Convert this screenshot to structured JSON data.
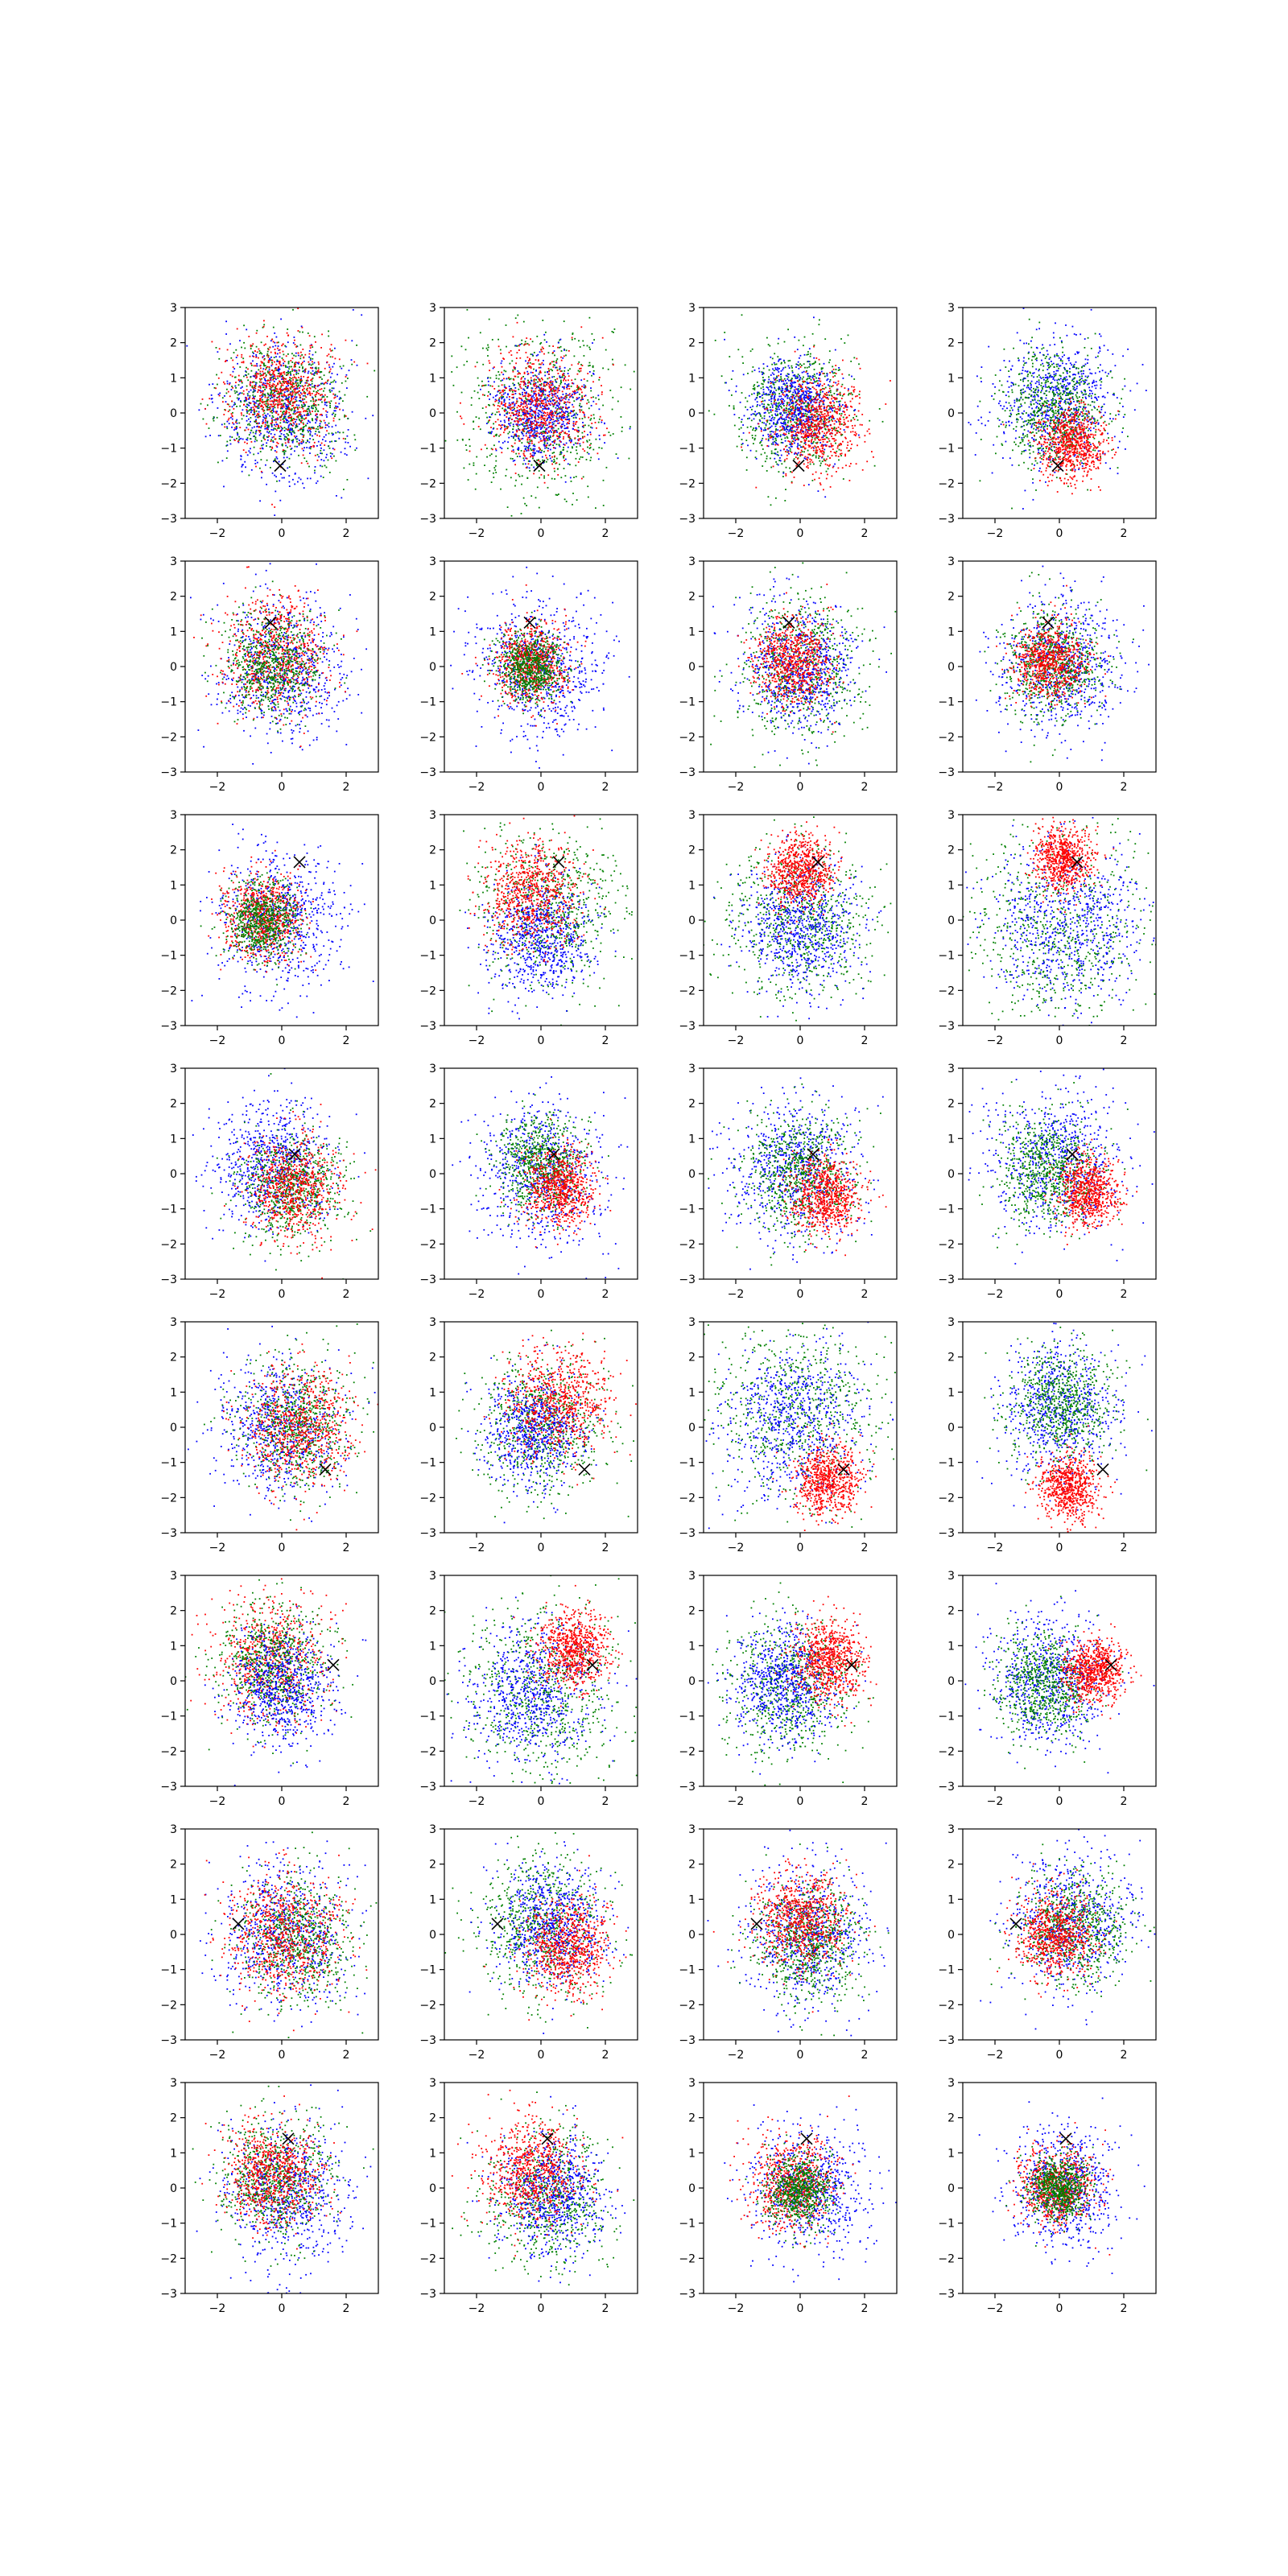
{
  "figure": {
    "rows": 8,
    "cols": 4
  },
  "colors": {
    "red": "#ff0000",
    "green": "#008000",
    "blue": "#0000ff",
    "marker": "#000000",
    "axes": "#000000"
  },
  "chart_data": {
    "type": "scatter",
    "title": "",
    "xlabel": "",
    "ylabel": "",
    "xlim": [
      -3,
      3
    ],
    "ylim": [
      -3,
      3
    ],
    "x_ticks": [
      -2,
      0,
      2
    ],
    "y_ticks": [
      -3,
      -2,
      -1,
      0,
      1,
      2,
      3
    ],
    "x_tick_labels": [
      "−2",
      "0",
      "2"
    ],
    "y_tick_labels": [
      "−3",
      "−2",
      "−1",
      "0",
      "1",
      "2",
      "3"
    ],
    "grid": false,
    "legend": "none",
    "marker_symbol": "x",
    "series_colors": [
      "blue",
      "green",
      "red"
    ],
    "note_series": "Each panel shows three colored point clouds; each cloud is summarized by its center [x, y] and spread sd.",
    "panels": [
      {
        "marker": [
          -0.05,
          -1.5
        ],
        "series": [
          {
            "color": "blue",
            "center": [
              0.0,
              0.0
            ],
            "sd": 1.0
          },
          {
            "color": "green",
            "center": [
              0.1,
              0.4
            ],
            "sd": 0.9
          },
          {
            "color": "red",
            "center": [
              0.0,
              0.6
            ],
            "sd": 0.8
          }
        ]
      },
      {
        "marker": [
          -0.05,
          -1.5
        ],
        "series": [
          {
            "color": "green",
            "center": [
              0.0,
              0.0
            ],
            "sd": 1.25
          },
          {
            "color": "blue",
            "center": [
              0.0,
              0.0
            ],
            "sd": 0.7
          },
          {
            "color": "red",
            "center": [
              0.0,
              0.2
            ],
            "sd": 0.8
          }
        ]
      },
      {
        "marker": [
          -0.05,
          -1.5
        ],
        "series": [
          {
            "color": "green",
            "center": [
              -0.2,
              0.1
            ],
            "sd": 0.9
          },
          {
            "color": "blue",
            "center": [
              -0.2,
              0.2
            ],
            "sd": 0.7
          },
          {
            "color": "red",
            "center": [
              0.5,
              -0.3
            ],
            "sd": 0.7
          }
        ]
      },
      {
        "marker": [
          -0.05,
          -1.5
        ],
        "series": [
          {
            "color": "blue",
            "center": [
              -0.1,
              0.3
            ],
            "sd": 0.9
          },
          {
            "color": "green",
            "center": [
              -0.2,
              0.1
            ],
            "sd": 0.8
          },
          {
            "color": "red",
            "center": [
              0.4,
              -0.9
            ],
            "sd": 0.5
          }
        ]
      },
      {
        "marker": [
          -0.35,
          1.25
        ],
        "series": [
          {
            "color": "blue",
            "center": [
              0.0,
              0.0
            ],
            "sd": 1.0
          },
          {
            "color": "red",
            "center": [
              -0.2,
              0.3
            ],
            "sd": 0.8
          },
          {
            "color": "green",
            "center": [
              -0.3,
              0.1
            ],
            "sd": 0.75
          }
        ]
      },
      {
        "marker": [
          -0.35,
          1.25
        ],
        "series": [
          {
            "color": "blue",
            "center": [
              0.0,
              0.0
            ],
            "sd": 1.0
          },
          {
            "color": "red",
            "center": [
              -0.3,
              0.1
            ],
            "sd": 0.55
          },
          {
            "color": "green",
            "center": [
              -0.3,
              0.0
            ],
            "sd": 0.5
          }
        ]
      },
      {
        "marker": [
          -0.35,
          1.25
        ],
        "series": [
          {
            "color": "green",
            "center": [
              0.0,
              0.0
            ],
            "sd": 1.0
          },
          {
            "color": "blue",
            "center": [
              0.0,
              0.0
            ],
            "sd": 0.9
          },
          {
            "color": "red",
            "center": [
              -0.2,
              0.1
            ],
            "sd": 0.6
          }
        ]
      },
      {
        "marker": [
          -0.35,
          1.25
        ],
        "series": [
          {
            "color": "blue",
            "center": [
              0.1,
              0.0
            ],
            "sd": 0.95
          },
          {
            "color": "green",
            "center": [
              -0.2,
              0.1
            ],
            "sd": 0.8
          },
          {
            "color": "red",
            "center": [
              -0.3,
              0.2
            ],
            "sd": 0.55
          }
        ]
      },
      {
        "marker": [
          0.55,
          1.65
        ],
        "series": [
          {
            "color": "blue",
            "center": [
              0.0,
              0.0
            ],
            "sd": 1.0
          },
          {
            "color": "red",
            "center": [
              -0.6,
              0.1
            ],
            "sd": 0.6
          },
          {
            "color": "green",
            "center": [
              -0.6,
              0.0
            ],
            "sd": 0.55
          }
        ]
      },
      {
        "marker": [
          0.55,
          1.65
        ],
        "series": [
          {
            "color": "green",
            "center": [
              0.3,
              0.3
            ],
            "sd": 1.1
          },
          {
            "color": "blue",
            "center": [
              0.0,
              -0.5
            ],
            "sd": 0.8
          },
          {
            "color": "red",
            "center": [
              -0.3,
              0.8
            ],
            "sd": 0.75
          }
        ]
      },
      {
        "marker": [
          0.55,
          1.65
        ],
        "series": [
          {
            "color": "green",
            "center": [
              0.0,
              0.0
            ],
            "sd": 1.1
          },
          {
            "color": "blue",
            "center": [
              0.0,
              -0.2
            ],
            "sd": 0.9
          },
          {
            "color": "red",
            "center": [
              0.0,
              1.4
            ],
            "sd": 0.5
          }
        ]
      },
      {
        "marker": [
          0.55,
          1.65
        ],
        "series": [
          {
            "color": "green",
            "center": [
              0.0,
              -0.4
            ],
            "sd": 1.5
          },
          {
            "color": "blue",
            "center": [
              0.2,
              -0.2
            ],
            "sd": 1.2
          },
          {
            "color": "red",
            "center": [
              0.1,
              1.75
            ],
            "sd": 0.45
          }
        ]
      },
      {
        "marker": [
          0.4,
          0.55
        ],
        "series": [
          {
            "color": "blue",
            "center": [
              -0.3,
              0.3
            ],
            "sd": 0.9
          },
          {
            "color": "green",
            "center": [
              0.3,
              -0.4
            ],
            "sd": 0.8
          },
          {
            "color": "red",
            "center": [
              0.4,
              -0.4
            ],
            "sd": 0.7
          }
        ]
      },
      {
        "marker": [
          0.4,
          0.55
        ],
        "series": [
          {
            "color": "blue",
            "center": [
              0.0,
              0.0
            ],
            "sd": 1.0
          },
          {
            "color": "green",
            "center": [
              0.0,
              0.3
            ],
            "sd": 0.7
          },
          {
            "color": "red",
            "center": [
              0.6,
              -0.4
            ],
            "sd": 0.55
          }
        ]
      },
      {
        "marker": [
          0.4,
          0.55
        ],
        "series": [
          {
            "color": "blue",
            "center": [
              -0.2,
              0.2
            ],
            "sd": 1.0
          },
          {
            "color": "green",
            "center": [
              0.0,
              0.0
            ],
            "sd": 0.85
          },
          {
            "color": "red",
            "center": [
              0.8,
              -0.6
            ],
            "sd": 0.55
          }
        ]
      },
      {
        "marker": [
          0.4,
          0.55
        ],
        "series": [
          {
            "color": "blue",
            "center": [
              0.0,
              0.3
            ],
            "sd": 1.0
          },
          {
            "color": "green",
            "center": [
              -0.3,
              0.1
            ],
            "sd": 0.8
          },
          {
            "color": "red",
            "center": [
              0.9,
              -0.5
            ],
            "sd": 0.5
          }
        ]
      },
      {
        "marker": [
          1.35,
          -1.2
        ],
        "series": [
          {
            "color": "blue",
            "center": [
              -0.1,
              0.0
            ],
            "sd": 1.0
          },
          {
            "color": "green",
            "center": [
              0.5,
              0.1
            ],
            "sd": 0.9
          },
          {
            "color": "red",
            "center": [
              0.6,
              0.0
            ],
            "sd": 0.85
          }
        ]
      },
      {
        "marker": [
          1.35,
          -1.2
        ],
        "series": [
          {
            "color": "green",
            "center": [
              0.0,
              0.0
            ],
            "sd": 1.0
          },
          {
            "color": "blue",
            "center": [
              -0.2,
              -0.1
            ],
            "sd": 0.75
          },
          {
            "color": "red",
            "center": [
              0.6,
              0.7
            ],
            "sd": 0.8
          }
        ]
      },
      {
        "marker": [
          1.35,
          -1.2
        ],
        "series": [
          {
            "color": "green",
            "center": [
              0.0,
              0.6
            ],
            "sd": 1.4
          },
          {
            "color": "blue",
            "center": [
              -0.2,
              0.2
            ],
            "sd": 1.1
          },
          {
            "color": "red",
            "center": [
              0.9,
              -1.5
            ],
            "sd": 0.5
          }
        ]
      },
      {
        "marker": [
          1.35,
          -1.2
        ],
        "series": [
          {
            "color": "blue",
            "center": [
              0.0,
              0.5
            ],
            "sd": 0.95
          },
          {
            "color": "green",
            "center": [
              0.0,
              0.7
            ],
            "sd": 0.8
          },
          {
            "color": "red",
            "center": [
              0.3,
              -1.7
            ],
            "sd": 0.45
          }
        ]
      },
      {
        "marker": [
          1.6,
          0.45
        ],
        "series": [
          {
            "color": "red",
            "center": [
              -0.4,
              0.6
            ],
            "sd": 0.9
          },
          {
            "color": "green",
            "center": [
              -0.3,
              0.5
            ],
            "sd": 0.85
          },
          {
            "color": "blue",
            "center": [
              0.0,
              -0.2
            ],
            "sd": 0.8
          }
        ]
      },
      {
        "marker": [
          1.6,
          0.45
        ],
        "series": [
          {
            "color": "green",
            "center": [
              0.0,
              -0.3
            ],
            "sd": 1.2
          },
          {
            "color": "blue",
            "center": [
              -0.2,
              -0.3
            ],
            "sd": 1.0
          },
          {
            "color": "red",
            "center": [
              1.0,
              0.9
            ],
            "sd": 0.55
          }
        ]
      },
      {
        "marker": [
          1.6,
          0.45
        ],
        "series": [
          {
            "color": "green",
            "center": [
              -0.3,
              -0.2
            ],
            "sd": 1.0
          },
          {
            "color": "blue",
            "center": [
              -0.5,
              -0.1
            ],
            "sd": 0.8
          },
          {
            "color": "red",
            "center": [
              0.9,
              0.6
            ],
            "sd": 0.55
          }
        ]
      },
      {
        "marker": [
          1.6,
          0.45
        ],
        "series": [
          {
            "color": "blue",
            "center": [
              -0.3,
              0.0
            ],
            "sd": 0.95
          },
          {
            "color": "green",
            "center": [
              -0.4,
              -0.1
            ],
            "sd": 0.75
          },
          {
            "color": "red",
            "center": [
              1.1,
              0.3
            ],
            "sd": 0.45
          }
        ]
      },
      {
        "marker": [
          -1.35,
          0.3
        ],
        "series": [
          {
            "color": "blue",
            "center": [
              0.0,
              0.0
            ],
            "sd": 1.0
          },
          {
            "color": "green",
            "center": [
              0.5,
              -0.2
            ],
            "sd": 0.9
          },
          {
            "color": "red",
            "center": [
              0.1,
              0.0
            ],
            "sd": 0.9
          }
        ]
      },
      {
        "marker": [
          -1.35,
          0.3
        ],
        "series": [
          {
            "color": "green",
            "center": [
              0.0,
              0.2
            ],
            "sd": 1.0
          },
          {
            "color": "blue",
            "center": [
              0.3,
              0.2
            ],
            "sd": 0.85
          },
          {
            "color": "red",
            "center": [
              0.8,
              -0.4
            ],
            "sd": 0.65
          }
        ]
      },
      {
        "marker": [
          -1.35,
          0.3
        ],
        "series": [
          {
            "color": "blue",
            "center": [
              0.3,
              -0.1
            ],
            "sd": 0.95
          },
          {
            "color": "green",
            "center": [
              0.2,
              -0.2
            ],
            "sd": 0.85
          },
          {
            "color": "red",
            "center": [
              0.0,
              0.4
            ],
            "sd": 0.7
          }
        ]
      },
      {
        "marker": [
          -1.35,
          0.3
        ],
        "series": [
          {
            "color": "blue",
            "center": [
              0.4,
              0.3
            ],
            "sd": 0.95
          },
          {
            "color": "green",
            "center": [
              0.5,
              0.2
            ],
            "sd": 0.8
          },
          {
            "color": "red",
            "center": [
              -0.1,
              0.0
            ],
            "sd": 0.6
          }
        ]
      },
      {
        "marker": [
          0.2,
          1.4
        ],
        "series": [
          {
            "color": "blue",
            "center": [
              0.2,
              -0.2
            ],
            "sd": 0.95
          },
          {
            "color": "green",
            "center": [
              -0.2,
              0.3
            ],
            "sd": 0.85
          },
          {
            "color": "red",
            "center": [
              -0.3,
              0.4
            ],
            "sd": 0.75
          }
        ]
      },
      {
        "marker": [
          0.2,
          1.4
        ],
        "series": [
          {
            "color": "green",
            "center": [
              0.2,
              -0.3
            ],
            "sd": 0.95
          },
          {
            "color": "blue",
            "center": [
              0.3,
              -0.2
            ],
            "sd": 0.85
          },
          {
            "color": "red",
            "center": [
              -0.3,
              0.5
            ],
            "sd": 0.75
          }
        ]
      },
      {
        "marker": [
          0.2,
          1.4
        ],
        "series": [
          {
            "color": "blue",
            "center": [
              0.3,
              0.0
            ],
            "sd": 0.9
          },
          {
            "color": "red",
            "center": [
              -0.2,
              0.1
            ],
            "sd": 0.65
          },
          {
            "color": "green",
            "center": [
              0.0,
              -0.1
            ],
            "sd": 0.5
          }
        ]
      },
      {
        "marker": [
          0.2,
          1.4
        ],
        "series": [
          {
            "color": "blue",
            "center": [
              0.2,
              0.0
            ],
            "sd": 0.8
          },
          {
            "color": "red",
            "center": [
              -0.1,
              0.0
            ],
            "sd": 0.55
          },
          {
            "color": "green",
            "center": [
              0.0,
              0.0
            ],
            "sd": 0.45
          }
        ]
      }
    ]
  }
}
